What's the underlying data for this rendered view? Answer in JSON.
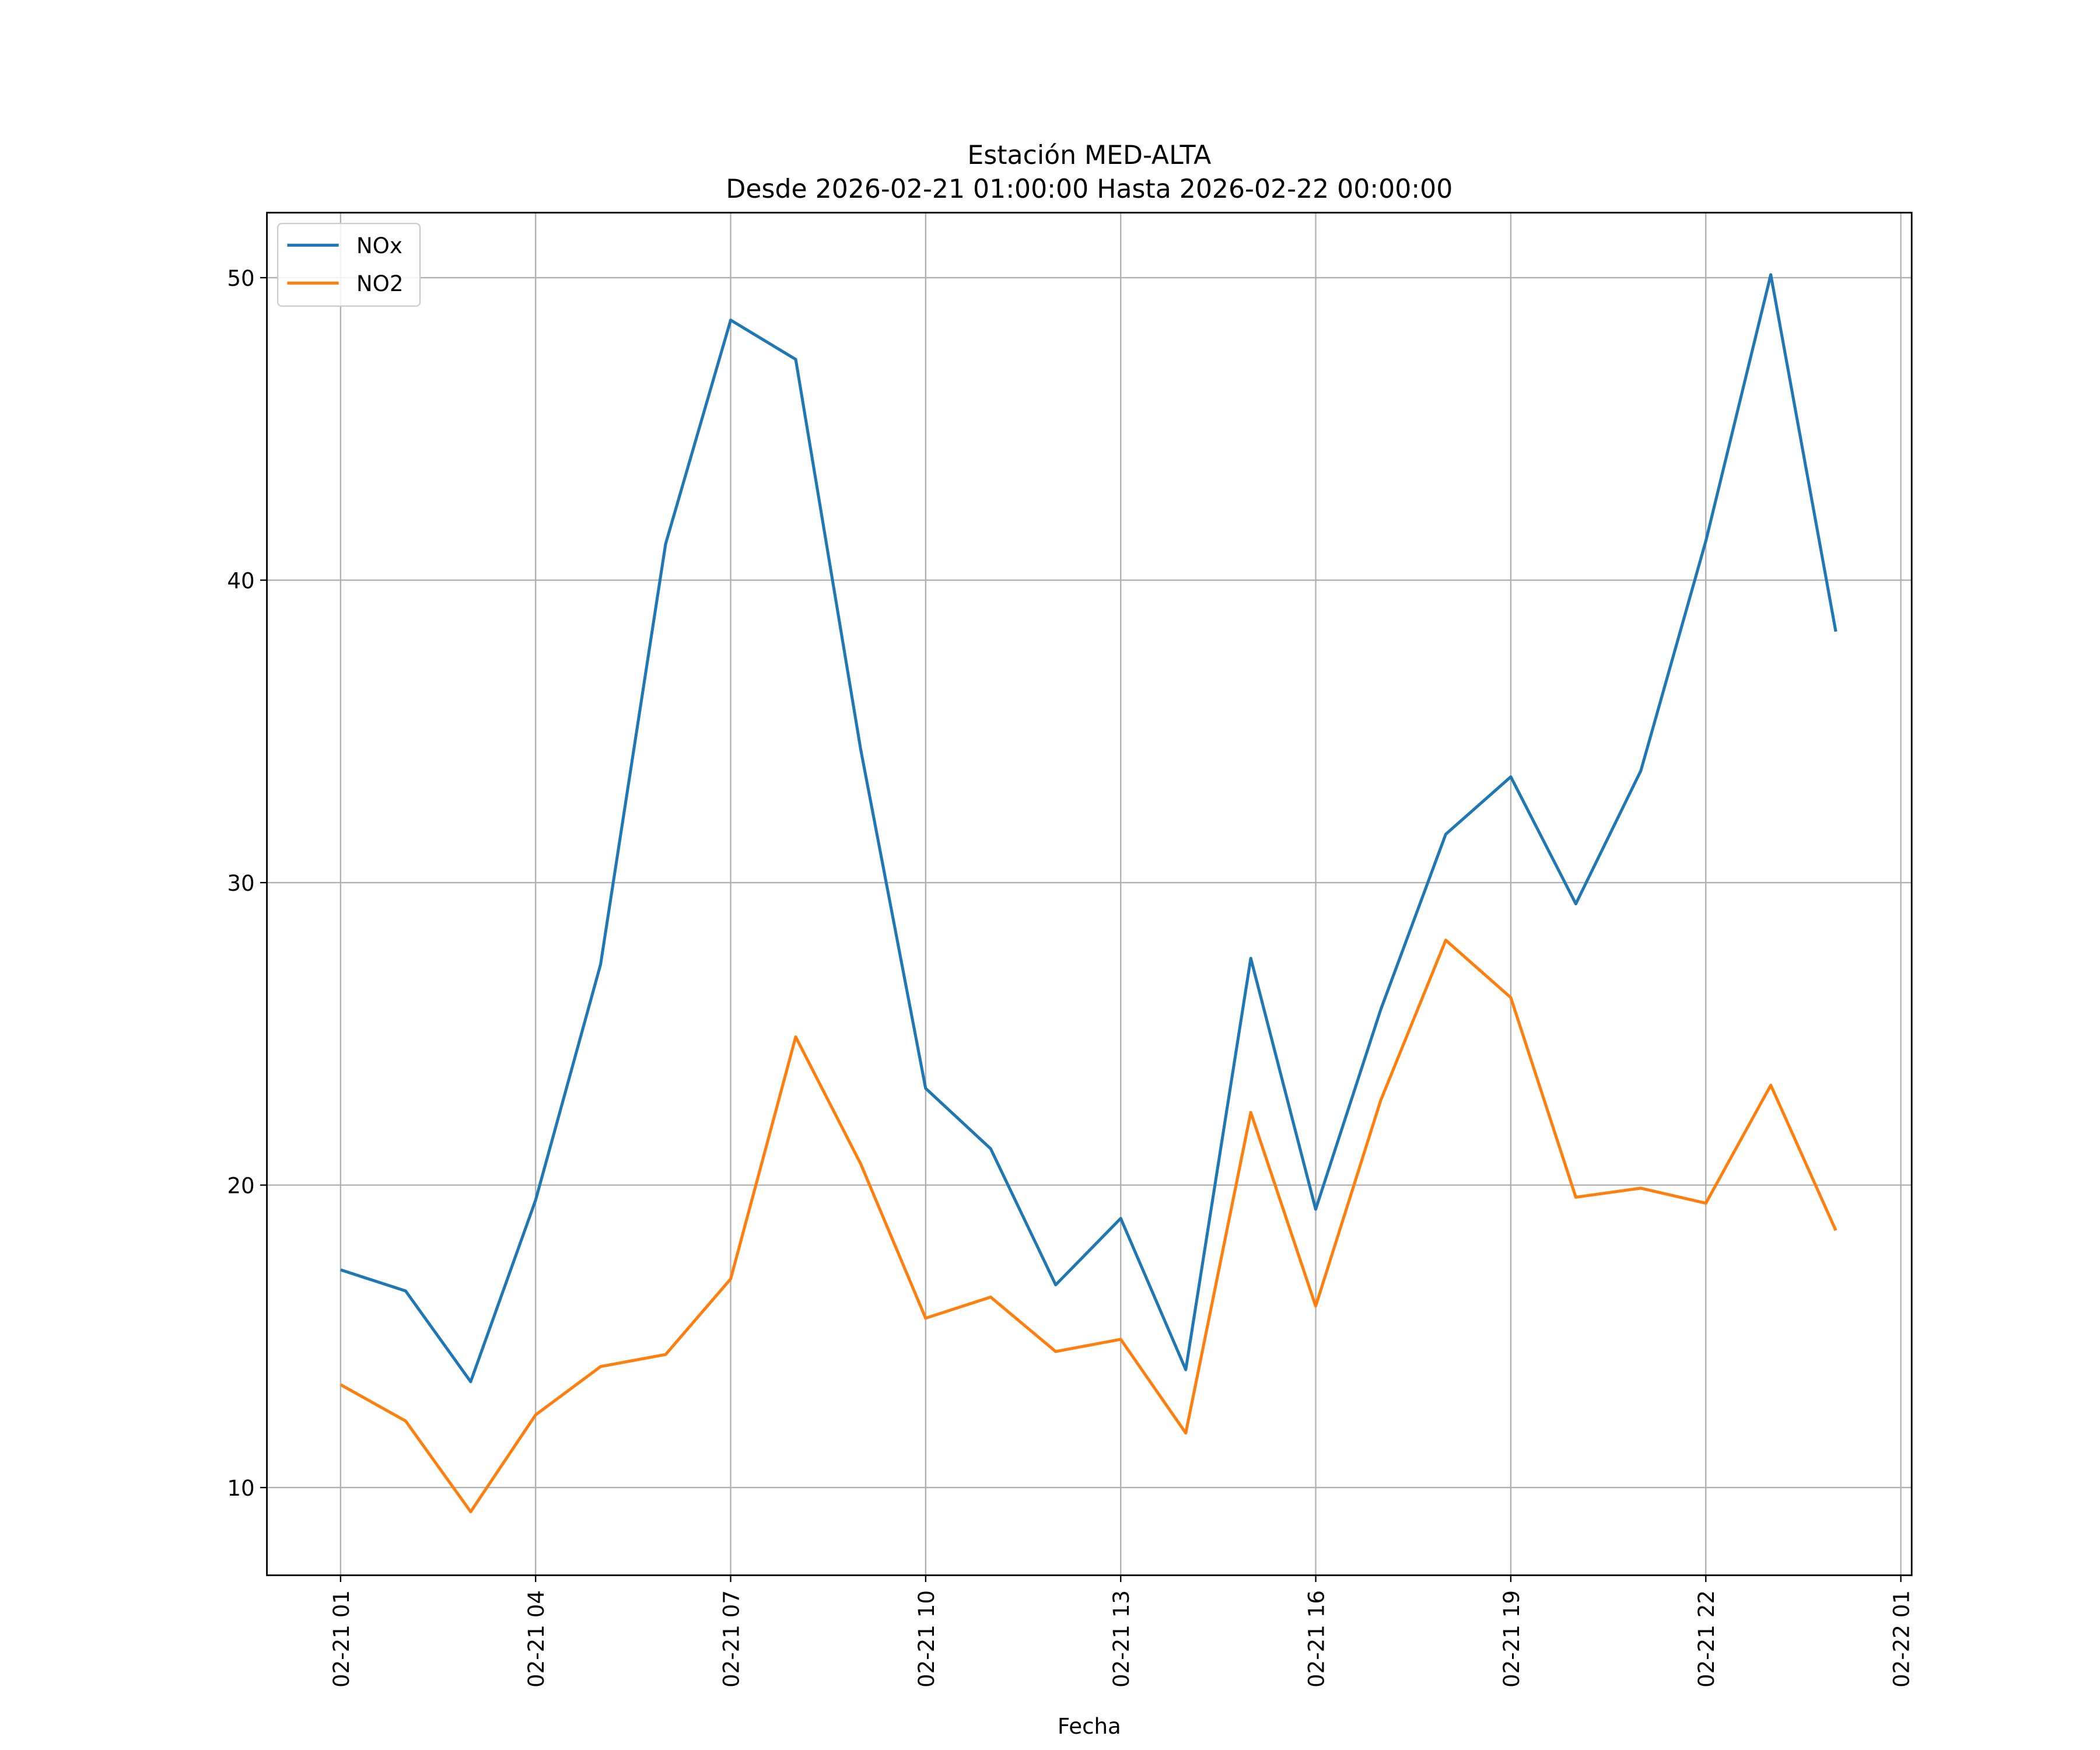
{
  "chart_data": {
    "type": "line",
    "title": "Estación MED-ALTA",
    "subtitle": "Desde 2026-02-21 01:00:00 Hasta 2026-02-22 00:00:00",
    "xlabel": "Fecha",
    "ylabel": "",
    "x": [
      "2026-02-21 01:00",
      "2026-02-21 02:00",
      "2026-02-21 03:00",
      "2026-02-21 04:00",
      "2026-02-21 05:00",
      "2026-02-21 06:00",
      "2026-02-21 07:00",
      "2026-02-21 08:00",
      "2026-02-21 09:00",
      "2026-02-21 10:00",
      "2026-02-21 11:00",
      "2026-02-21 12:00",
      "2026-02-21 13:00",
      "2026-02-21 14:00",
      "2026-02-21 15:00",
      "2026-02-21 16:00",
      "2026-02-21 17:00",
      "2026-02-21 18:00",
      "2026-02-21 19:00",
      "2026-02-21 20:00",
      "2026-02-21 21:00",
      "2026-02-21 22:00",
      "2026-02-21 23:00",
      "2026-02-22 00:00"
    ],
    "series": [
      {
        "name": "NOx",
        "color": "#1f77b4",
        "values": [
          17.2,
          16.5,
          13.5,
          19.5,
          27.3,
          41.2,
          48.6,
          47.3,
          34.4,
          23.2,
          21.2,
          16.7,
          18.9,
          13.9,
          27.5,
          19.2,
          25.8,
          31.6,
          33.5,
          29.3,
          33.7,
          41.3,
          50.1,
          38.3
        ]
      },
      {
        "name": "NO2",
        "color": "#ff7f0e",
        "values": [
          13.4,
          12.2,
          9.2,
          12.4,
          14.0,
          14.4,
          16.9,
          24.9,
          20.7,
          15.6,
          16.3,
          14.5,
          14.9,
          11.8,
          22.4,
          16.0,
          22.8,
          28.1,
          26.2,
          19.6,
          19.9,
          19.4,
          23.3,
          18.5
        ]
      }
    ],
    "xticks": [
      "2026-02-21 01:00",
      "2026-02-21 04:00",
      "2026-02-21 07:00",
      "2026-02-21 10:00",
      "2026-02-21 13:00",
      "2026-02-21 16:00",
      "2026-02-21 19:00",
      "2026-02-21 22:00",
      "2026-02-22 01:00"
    ],
    "xtick_labels": [
      "02-21 01",
      "02-21 04",
      "02-21 07",
      "02-21 10",
      "02-21 13",
      "02-21 16",
      "02-21 19",
      "02-21 22",
      "02-22 01"
    ],
    "yticks": [
      10,
      20,
      30,
      40,
      50
    ],
    "ytick_labels": [
      "10",
      "20",
      "30",
      "40",
      "50"
    ],
    "xlim": [
      "2026-02-20 23:52",
      "2026-02-22 01:10"
    ],
    "ylim": [
      7.1,
      52.15
    ],
    "grid": true,
    "legend_placement": "upper-left"
  }
}
